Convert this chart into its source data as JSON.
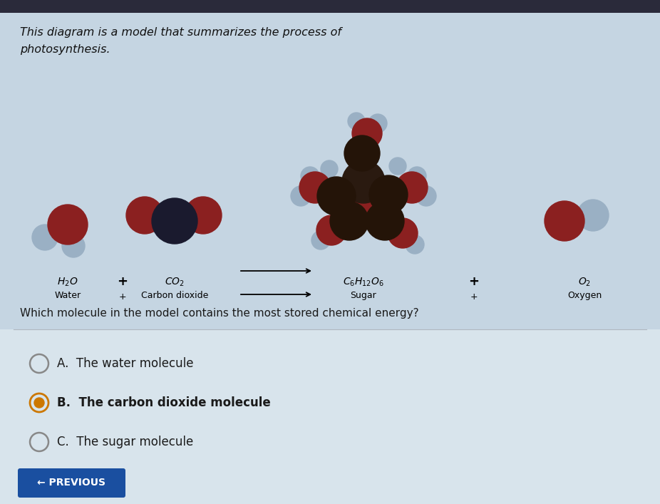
{
  "bg_color": "#c5d5e2",
  "title_line1": "This diagram is a model that summarizes the process of",
  "title_line2": "photosynthesis.",
  "question": "Which molecule in the model contains the most stored chemical energy?",
  "answer_A": "A.  The water molecule",
  "answer_B": "B.  The carbon dioxide molecule",
  "answer_C": "C.  The sugar molecule",
  "prev_button_text": "← PREVIOUS",
  "prev_button_color": "#1a4fa0",
  "dark_red": "#8B2020",
  "dark_navy": "#1a1a2e",
  "blue_gray": "#9ab0c4",
  "light_blue_gray": "#b8cdd8",
  "separator_color": "#b0b8c0",
  "top_bar_color": "#2a2a3a",
  "title_color": "#111111",
  "text_color": "#1a1a1a",
  "radio_unsel_color": "#888888",
  "radio_sel_color": "#cc7700"
}
